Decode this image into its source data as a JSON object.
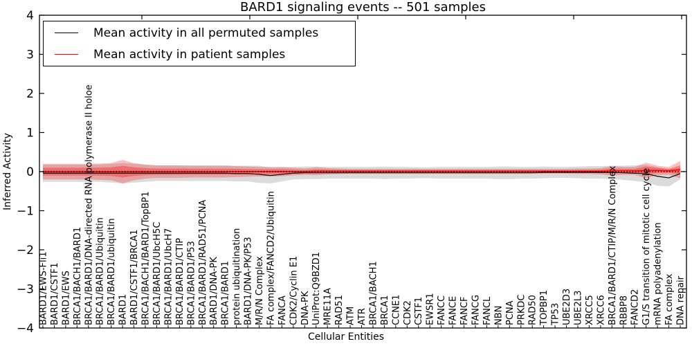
{
  "chart_data": {
    "type": "line",
    "title": "BARD1 signaling events -- 501 samples",
    "xlabel": "Cellular Entities",
    "ylabel": "Inferred Activity",
    "ylim": [
      -4,
      4
    ],
    "yticks": [
      "4",
      "3",
      "2",
      "1",
      "0",
      "−1",
      "−2",
      "−3",
      "−4"
    ],
    "grid": false,
    "legend_position": "upper left",
    "zero_line": {
      "style": "dotted",
      "color": "#000000"
    },
    "categories": [
      "BARD1/EWS-Fli1",
      "BARD1/CSTF1",
      "BARD1/EWS",
      "BRCA1/BACH1/BARD1",
      "BRCA1/BARD1/DNA-directed RNA polymerase II holoe",
      "BRCA1/BARD1/Ubiquitin",
      "BRCA1/BARD1/ubiquitin",
      "BARD1",
      "BARD1/CSTF1/BRCA1",
      "BRCA1/BACH1/BARD1/TopBP1",
      "BRCA1/BARD1/UbcH5C",
      "BRCA1/BARD1/UbcH7",
      "BRCA1/BARD1/CTIP",
      "BRCA1/BARD1/P53",
      "BRCA1/BARD1/RAD51/PCNA",
      "BARD1/DNA-PK",
      "BRCA1/BARD1",
      "protein ubiquitination",
      "BARD1/DNA-PK/P53",
      "M/R/N Complex",
      "FA complex/FANCD2/Ubiquitin",
      "FANCA",
      "CDK2/Cyclin E1",
      "DNA-PK",
      "UniProt:Q9BZD1",
      "MRE11A",
      "RAD51",
      "ATM",
      "ATR",
      "BRCA1/BACH1",
      "BRCA1",
      "CCNE1",
      "CDK2",
      "CSTF1",
      "EWSR1",
      "FANCC",
      "FANCE",
      "FANCF",
      "FANCG",
      "FANCL",
      "NBN",
      "PCNA",
      "PRKDC",
      "RAD50",
      "TOPBP1",
      "TP53",
      "UBE2D3",
      "UBE2L3",
      "XRCC5",
      "XRCC6",
      "BRCA1/BARD1/CTIP/M/R/N Complex",
      "RBBP8",
      "FANCD2",
      "G1/S transition of mitotic cell cycle",
      "mRNA polyadenylation",
      "FA complex",
      "DNA repair"
    ],
    "series": [
      {
        "name": "Mean activity in all permuted samples",
        "color": "#000000",
        "band_color": "#999999",
        "values": [
          -0.04,
          -0.04,
          -0.04,
          -0.04,
          -0.04,
          -0.04,
          -0.04,
          -0.04,
          -0.04,
          -0.04,
          -0.04,
          -0.04,
          -0.04,
          -0.04,
          -0.04,
          -0.04,
          -0.04,
          -0.05,
          -0.05,
          -0.07,
          -0.1,
          -0.07,
          -0.04,
          -0.03,
          -0.03,
          -0.03,
          -0.03,
          -0.03,
          -0.03,
          -0.03,
          -0.03,
          -0.03,
          -0.03,
          -0.03,
          -0.03,
          -0.03,
          -0.03,
          -0.03,
          -0.03,
          -0.03,
          -0.03,
          -0.03,
          -0.03,
          -0.03,
          -0.02,
          -0.02,
          -0.02,
          -0.02,
          -0.02,
          -0.02,
          -0.02,
          -0.03,
          -0.04,
          -0.05,
          -0.12,
          -0.16,
          -0.05
        ],
        "std": [
          0.22,
          0.22,
          0.22,
          0.22,
          0.22,
          0.22,
          0.24,
          0.26,
          0.24,
          0.22,
          0.2,
          0.2,
          0.2,
          0.2,
          0.2,
          0.2,
          0.2,
          0.2,
          0.2,
          0.22,
          0.2,
          0.18,
          0.16,
          0.16,
          0.16,
          0.15,
          0.15,
          0.15,
          0.15,
          0.15,
          0.16,
          0.15,
          0.15,
          0.14,
          0.14,
          0.15,
          0.15,
          0.15,
          0.15,
          0.15,
          0.16,
          0.16,
          0.15,
          0.15,
          0.15,
          0.14,
          0.14,
          0.15,
          0.16,
          0.16,
          0.17,
          0.18,
          0.2,
          0.22,
          0.24,
          0.22,
          0.15
        ]
      },
      {
        "name": "Mean activity in patient samples",
        "color": "#ff0000",
        "band_color": "#ff0000",
        "values": [
          0,
          0,
          0,
          0,
          0,
          0,
          0,
          0,
          0,
          0,
          0,
          0,
          0,
          0,
          0,
          0,
          0,
          0,
          0,
          0,
          0,
          0,
          0,
          0,
          0.01,
          0.01,
          0.01,
          0.01,
          0.01,
          0.01,
          0.01,
          0.01,
          0.01,
          0.01,
          0.01,
          0.01,
          0.01,
          0.01,
          0.01,
          0.01,
          0.01,
          0.01,
          0.01,
          0.01,
          0.01,
          0.01,
          0.01,
          0.01,
          0.01,
          0.01,
          0.02,
          0.02,
          0.02,
          0.03,
          0.03,
          0.02,
          0.05
        ],
        "std": [
          0.2,
          0.2,
          0.2,
          0.2,
          0.2,
          0.21,
          0.22,
          0.3,
          0.22,
          0.18,
          0.16,
          0.16,
          0.16,
          0.15,
          0.15,
          0.15,
          0.15,
          0.14,
          0.13,
          0.12,
          0.12,
          0.12,
          0.1,
          0.08,
          0.1,
          0.08,
          0.07,
          0.06,
          0.06,
          0.06,
          0.06,
          0.06,
          0.06,
          0.06,
          0.06,
          0.06,
          0.06,
          0.06,
          0.06,
          0.06,
          0.06,
          0.06,
          0.06,
          0.06,
          0.06,
          0.06,
          0.06,
          0.07,
          0.07,
          0.08,
          0.12,
          0.1,
          0.1,
          0.2,
          0.12,
          0.1,
          0.22
        ]
      }
    ]
  }
}
